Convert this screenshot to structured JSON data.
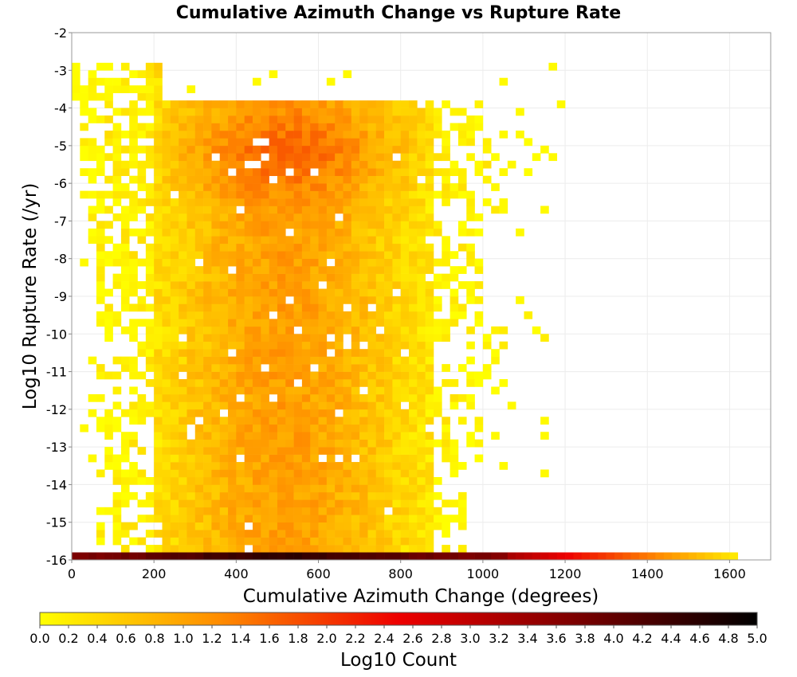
{
  "chart_data": {
    "type": "heatmap",
    "title": "Cumulative Azimuth Change vs Rupture Rate",
    "xlabel": "Cumulative Azimuth Change (degrees)",
    "ylabel": "Log10 Rupture Rate (/yr)",
    "xlim": [
      0,
      1700
    ],
    "ylim": [
      -16,
      -2
    ],
    "xticks": [
      "0",
      "200",
      "400",
      "600",
      "800",
      "1000",
      "1200",
      "1400",
      "1600"
    ],
    "yticks": [
      "-2",
      "-3",
      "-4",
      "-5",
      "-6",
      "-7",
      "-8",
      "-9",
      "-10",
      "-11",
      "-12",
      "-13",
      "-14",
      "-15",
      "-16"
    ],
    "grid": true,
    "colorbar": {
      "label": "Log10 Count",
      "range": [
        0,
        5
      ],
      "ticks": [
        "0.0",
        "0.2",
        "0.4",
        "0.6",
        "0.8",
        "1.0",
        "1.2",
        "1.4",
        "1.6",
        "1.8",
        "2.0",
        "2.2",
        "2.4",
        "2.6",
        "2.8",
        "3.0",
        "3.2",
        "3.4",
        "3.6",
        "3.8",
        "4.0",
        "4.2",
        "4.4",
        "4.6",
        "4.8",
        "5.0"
      ],
      "colormap": [
        "#ffff00",
        "#ff8000",
        "#ff0000",
        "#800000",
        "#000000"
      ]
    },
    "bin_width_x": 20,
    "bin_height_y": 0.2,
    "note_bins": "density approximated",
    "bottom_row_y": -15.9,
    "bottom_row_x_max": 1620
  }
}
